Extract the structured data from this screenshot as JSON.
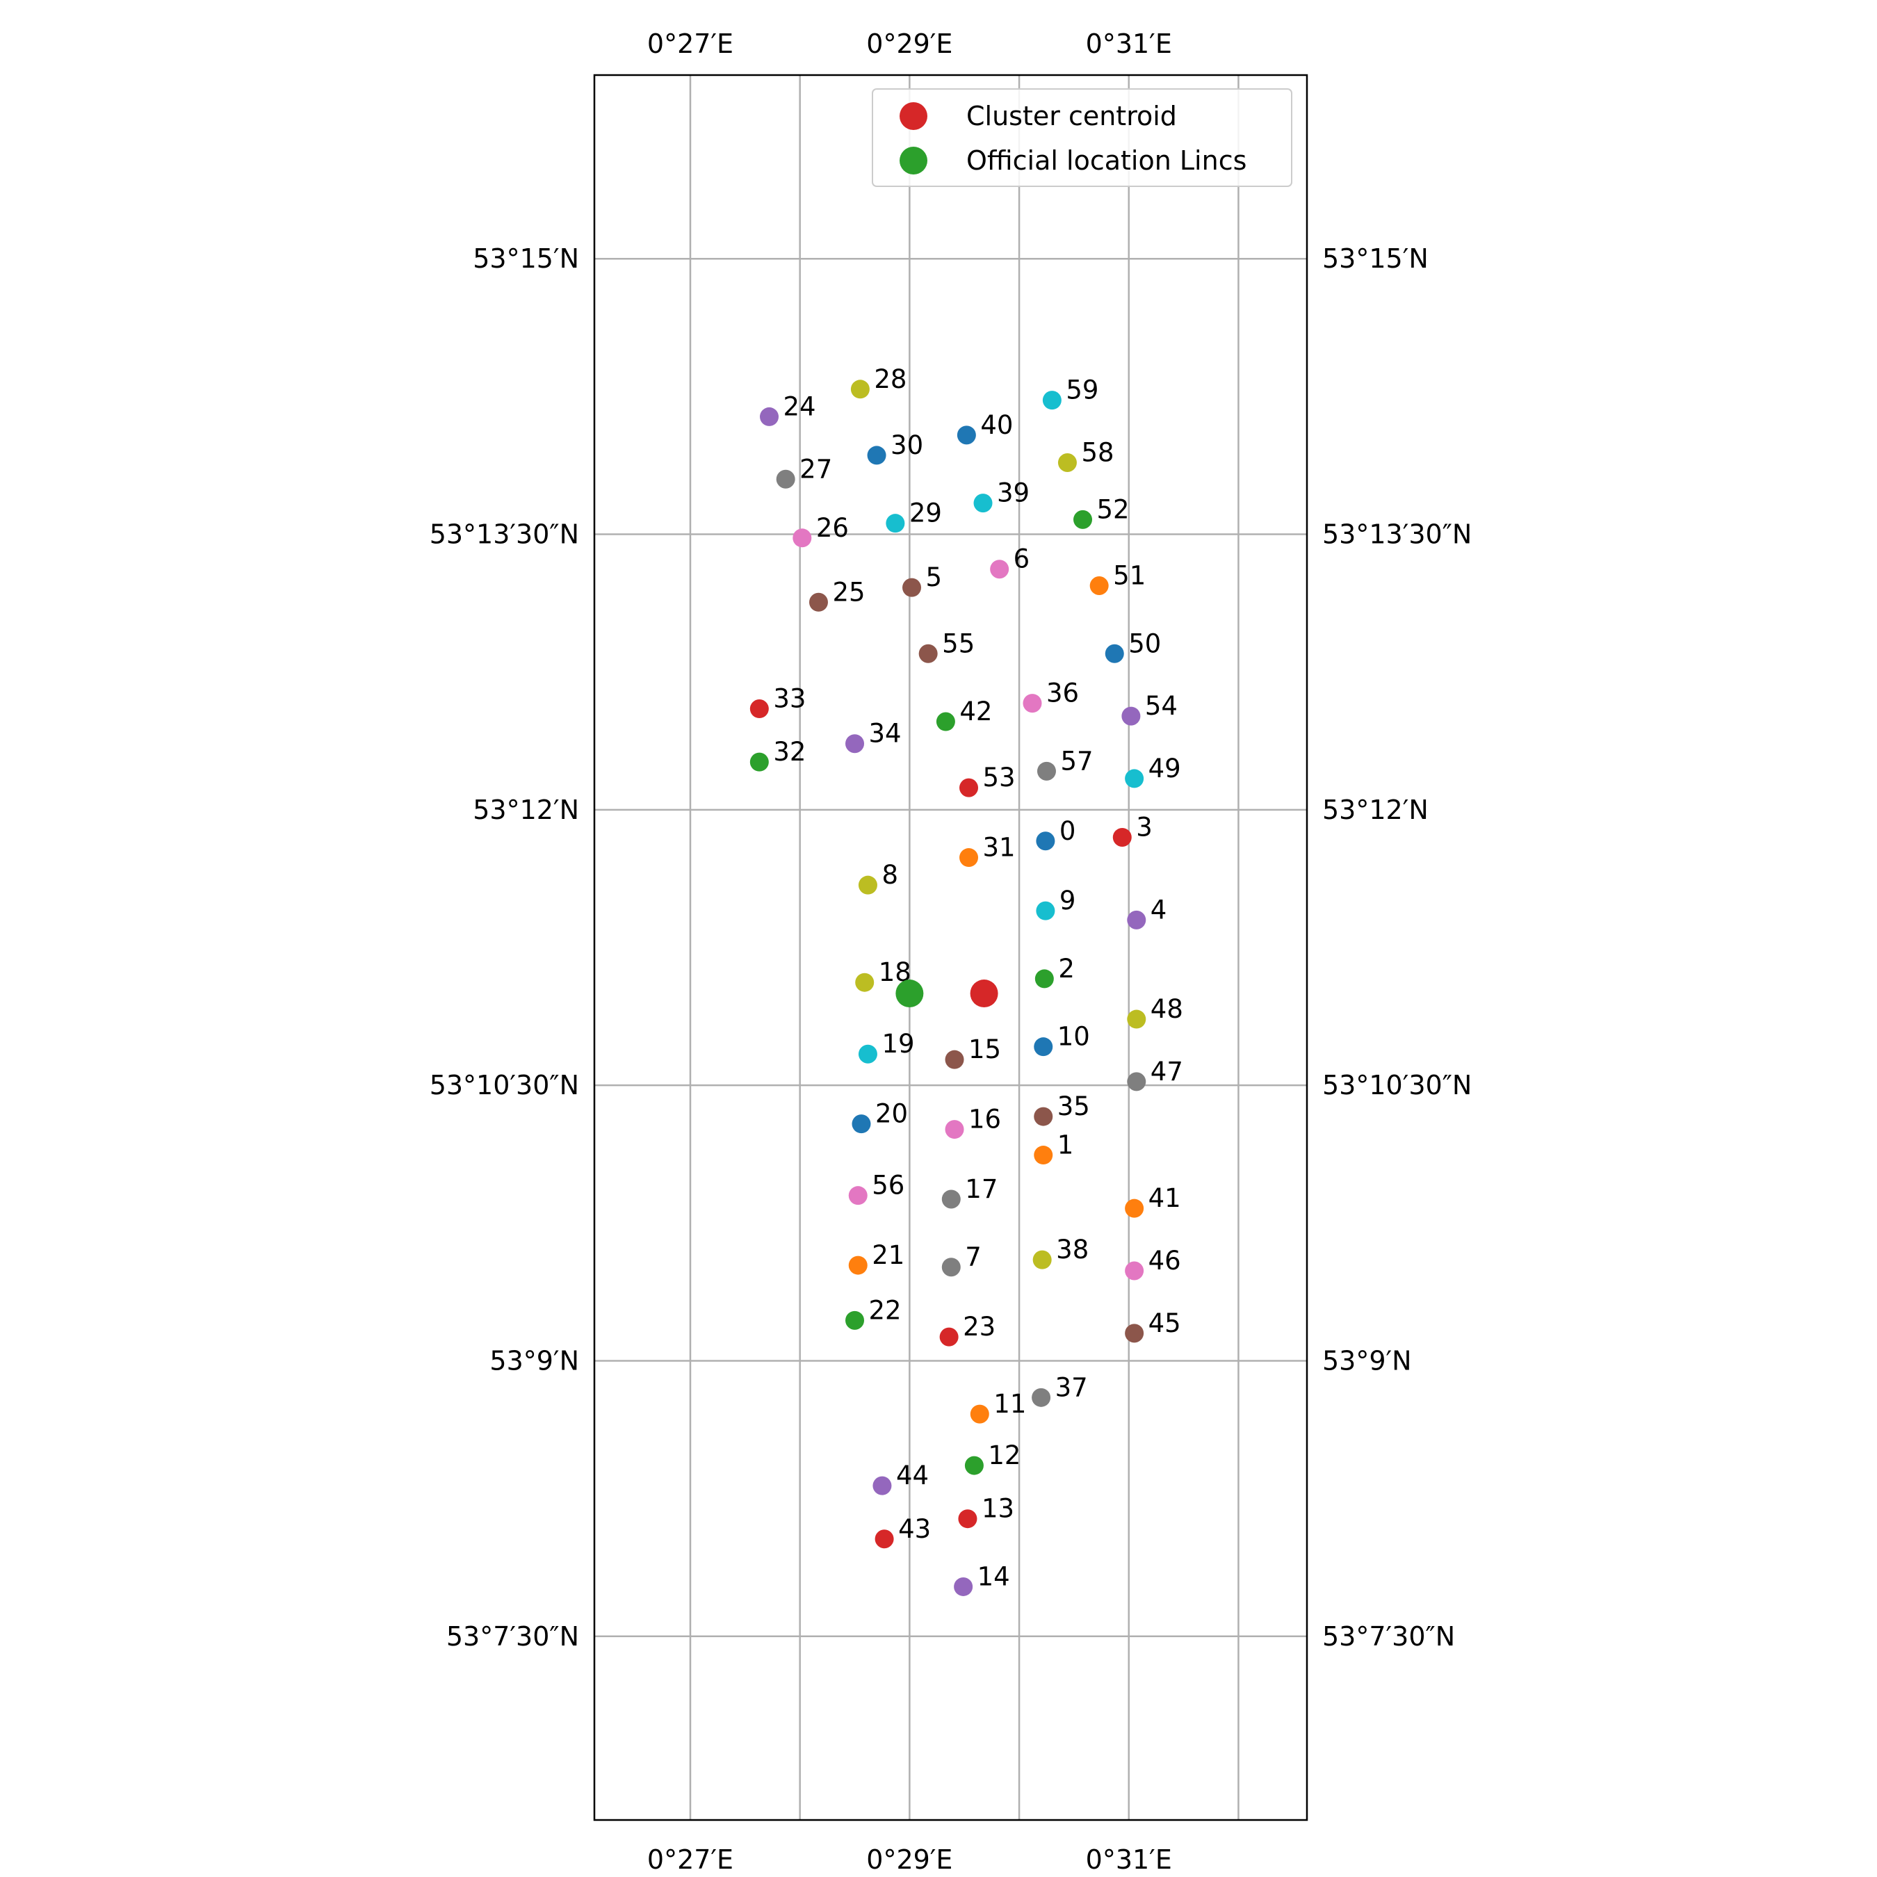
{
  "chart_data": {
    "type": "scatter",
    "x_axis": {
      "range_minutes_E": [
        26.125,
        32.625
      ],
      "gridlines_minutes": [
        27,
        28,
        29,
        30,
        31,
        32
      ],
      "tick_labels": [
        {
          "value": 27,
          "label": "0°27′E"
        },
        {
          "value": 29,
          "label": "0°29′E"
        },
        {
          "value": 31,
          "label": "0°31′E"
        }
      ]
    },
    "y_axis": {
      "range_minutes_N": [
        6.5,
        16.0
      ],
      "gridlines_minutes": [
        7.5,
        9,
        10.5,
        12,
        13.5,
        15
      ],
      "tick_labels": [
        {
          "value": 15,
          "label": "53°15′N"
        },
        {
          "value": 13.5,
          "label": "53°13′30″N"
        },
        {
          "value": 12,
          "label": "53°12′N"
        },
        {
          "value": 10.5,
          "label": "53°10′30″N"
        },
        {
          "value": 9,
          "label": "53°9′N"
        },
        {
          "value": 7.5,
          "label": "53°7′30″N"
        }
      ]
    },
    "grid": true,
    "legend": {
      "position": "top-right",
      "entries": [
        {
          "label": "Cluster centroid",
          "color": "#d62728"
        },
        {
          "label": "Official location Lincs",
          "color": "#2ca02c"
        }
      ]
    },
    "palette": [
      "#1f77b4",
      "#ff7f0e",
      "#2ca02c",
      "#d62728",
      "#9467bd",
      "#8c564b",
      "#e377c2",
      "#7f7f7f",
      "#bcbd22",
      "#17becf"
    ],
    "points": [
      {
        "label": "0",
        "lon": 30.24,
        "lat": 11.83
      },
      {
        "label": "1",
        "lon": 30.22,
        "lat": 10.12
      },
      {
        "label": "2",
        "lon": 30.23,
        "lat": 11.08
      },
      {
        "label": "3",
        "lon": 30.94,
        "lat": 11.85
      },
      {
        "label": "4",
        "lon": 31.07,
        "lat": 11.4
      },
      {
        "label": "5",
        "lon": 29.02,
        "lat": 13.21
      },
      {
        "label": "6",
        "lon": 29.82,
        "lat": 13.31
      },
      {
        "label": "7",
        "lon": 29.38,
        "lat": 9.51
      },
      {
        "label": "8",
        "lon": 28.62,
        "lat": 11.59
      },
      {
        "label": "9",
        "lon": 30.24,
        "lat": 11.45
      },
      {
        "label": "10",
        "lon": 30.22,
        "lat": 10.71
      },
      {
        "label": "11",
        "lon": 29.64,
        "lat": 8.71
      },
      {
        "label": "12",
        "lon": 29.59,
        "lat": 8.43
      },
      {
        "label": "13",
        "lon": 29.53,
        "lat": 8.14
      },
      {
        "label": "14",
        "lon": 29.49,
        "lat": 7.77
      },
      {
        "label": "15",
        "lon": 29.41,
        "lat": 10.64
      },
      {
        "label": "16",
        "lon": 29.41,
        "lat": 10.26
      },
      {
        "label": "17",
        "lon": 29.38,
        "lat": 9.88
      },
      {
        "label": "18",
        "lon": 28.59,
        "lat": 11.06
      },
      {
        "label": "19",
        "lon": 28.62,
        "lat": 10.67
      },
      {
        "label": "20",
        "lon": 28.56,
        "lat": 10.29
      },
      {
        "label": "21",
        "lon": 28.53,
        "lat": 9.52
      },
      {
        "label": "22",
        "lon": 28.5,
        "lat": 9.22
      },
      {
        "label": "23",
        "lon": 29.36,
        "lat": 9.13
      },
      {
        "label": "24",
        "lon": 27.72,
        "lat": 14.14
      },
      {
        "label": "25",
        "lon": 28.17,
        "lat": 13.13
      },
      {
        "label": "26",
        "lon": 28.02,
        "lat": 13.48
      },
      {
        "label": "27",
        "lon": 27.87,
        "lat": 13.8
      },
      {
        "label": "28",
        "lon": 28.55,
        "lat": 14.29
      },
      {
        "label": "29",
        "lon": 28.87,
        "lat": 13.56
      },
      {
        "label": "30",
        "lon": 28.7,
        "lat": 13.93
      },
      {
        "label": "31",
        "lon": 29.54,
        "lat": 11.74
      },
      {
        "label": "32",
        "lon": 27.63,
        "lat": 12.26
      },
      {
        "label": "33",
        "lon": 27.63,
        "lat": 12.55
      },
      {
        "label": "34",
        "lon": 28.5,
        "lat": 12.36
      },
      {
        "label": "35",
        "lon": 30.22,
        "lat": 10.33
      },
      {
        "label": "36",
        "lon": 30.12,
        "lat": 12.58
      },
      {
        "label": "37",
        "lon": 30.2,
        "lat": 8.8
      },
      {
        "label": "38",
        "lon": 30.21,
        "lat": 9.55
      },
      {
        "label": "39",
        "lon": 29.67,
        "lat": 13.67
      },
      {
        "label": "40",
        "lon": 29.52,
        "lat": 14.04
      },
      {
        "label": "41",
        "lon": 31.05,
        "lat": 9.83
      },
      {
        "label": "42",
        "lon": 29.33,
        "lat": 12.48
      },
      {
        "label": "43",
        "lon": 28.77,
        "lat": 8.03
      },
      {
        "label": "44",
        "lon": 28.75,
        "lat": 8.32
      },
      {
        "label": "45",
        "lon": 31.05,
        "lat": 9.15
      },
      {
        "label": "46",
        "lon": 31.05,
        "lat": 9.49
      },
      {
        "label": "47",
        "lon": 31.07,
        "lat": 10.52
      },
      {
        "label": "48",
        "lon": 31.07,
        "lat": 10.86
      },
      {
        "label": "49",
        "lon": 31.05,
        "lat": 12.17
      },
      {
        "label": "50",
        "lon": 30.87,
        "lat": 12.85
      },
      {
        "label": "51",
        "lon": 30.73,
        "lat": 13.22
      },
      {
        "label": "52",
        "lon": 30.58,
        "lat": 13.58
      },
      {
        "label": "53",
        "lon": 29.54,
        "lat": 12.12
      },
      {
        "label": "54",
        "lon": 31.02,
        "lat": 12.51
      },
      {
        "label": "55",
        "lon": 29.17,
        "lat": 12.85
      },
      {
        "label": "56",
        "lon": 28.53,
        "lat": 9.9
      },
      {
        "label": "57",
        "lon": 30.25,
        "lat": 12.21
      },
      {
        "label": "58",
        "lon": 30.44,
        "lat": 13.89
      },
      {
        "label": "59",
        "lon": 30.3,
        "lat": 14.23
      }
    ],
    "centroid": {
      "lon": 29.68,
      "lat": 11.0
    },
    "official_location": {
      "lon": 29.0,
      "lat": 11.0
    }
  }
}
